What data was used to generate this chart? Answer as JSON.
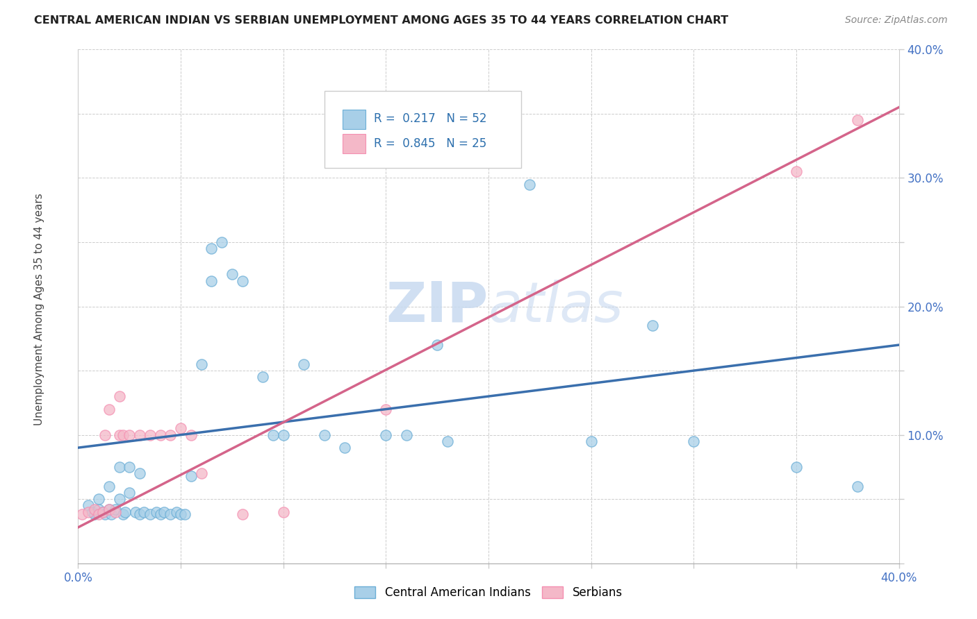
{
  "title": "CENTRAL AMERICAN INDIAN VS SERBIAN UNEMPLOYMENT AMONG AGES 35 TO 44 YEARS CORRELATION CHART",
  "source": "Source: ZipAtlas.com",
  "ylabel": "Unemployment Among Ages 35 to 44 years",
  "xlim": [
    0.0,
    0.4
  ],
  "ylim": [
    0.0,
    0.4
  ],
  "xticks": [
    0.0,
    0.05,
    0.1,
    0.15,
    0.2,
    0.25,
    0.3,
    0.35,
    0.4
  ],
  "yticks": [
    0.0,
    0.05,
    0.1,
    0.15,
    0.2,
    0.25,
    0.3,
    0.35,
    0.4
  ],
  "xticklabels": [
    "0.0%",
    "",
    "",
    "",
    "",
    "",
    "",
    "",
    "40.0%"
  ],
  "yticklabels": [
    "",
    "",
    "10.0%",
    "",
    "20.0%",
    "",
    "30.0%",
    "",
    "40.0%"
  ],
  "blue_color": "#a8cfe8",
  "pink_color": "#f4b8c8",
  "blue_edge_color": "#6baed6",
  "pink_edge_color": "#f48fb1",
  "blue_line_color": "#3a6fad",
  "pink_line_color": "#d4648a",
  "watermark_color": "#dce8f5",
  "blue_scatter_x": [
    0.005,
    0.007,
    0.008,
    0.01,
    0.01,
    0.012,
    0.013,
    0.015,
    0.015,
    0.016,
    0.018,
    0.02,
    0.02,
    0.022,
    0.023,
    0.025,
    0.025,
    0.028,
    0.03,
    0.03,
    0.032,
    0.035,
    0.038,
    0.04,
    0.042,
    0.045,
    0.048,
    0.05,
    0.052,
    0.055,
    0.06,
    0.065,
    0.065,
    0.07,
    0.075,
    0.08,
    0.09,
    0.095,
    0.1,
    0.11,
    0.12,
    0.13,
    0.15,
    0.16,
    0.175,
    0.18,
    0.22,
    0.25,
    0.28,
    0.3,
    0.35,
    0.38
  ],
  "blue_scatter_y": [
    0.045,
    0.04,
    0.038,
    0.042,
    0.05,
    0.04,
    0.038,
    0.042,
    0.06,
    0.038,
    0.042,
    0.05,
    0.075,
    0.038,
    0.04,
    0.055,
    0.075,
    0.04,
    0.038,
    0.07,
    0.04,
    0.038,
    0.04,
    0.038,
    0.04,
    0.038,
    0.04,
    0.038,
    0.038,
    0.068,
    0.155,
    0.245,
    0.22,
    0.25,
    0.225,
    0.22,
    0.145,
    0.1,
    0.1,
    0.155,
    0.1,
    0.09,
    0.1,
    0.1,
    0.17,
    0.095,
    0.295,
    0.095,
    0.185,
    0.095,
    0.075,
    0.06
  ],
  "pink_scatter_x": [
    0.002,
    0.005,
    0.008,
    0.01,
    0.012,
    0.013,
    0.015,
    0.015,
    0.018,
    0.02,
    0.02,
    0.022,
    0.025,
    0.03,
    0.035,
    0.04,
    0.045,
    0.05,
    0.055,
    0.06,
    0.08,
    0.1,
    0.15,
    0.35,
    0.38
  ],
  "pink_scatter_y": [
    0.038,
    0.04,
    0.042,
    0.038,
    0.04,
    0.1,
    0.042,
    0.12,
    0.04,
    0.1,
    0.13,
    0.1,
    0.1,
    0.1,
    0.1,
    0.1,
    0.1,
    0.105,
    0.1,
    0.07,
    0.038,
    0.04,
    0.12,
    0.305,
    0.345
  ],
  "blue_line_x": [
    0.0,
    0.4
  ],
  "blue_line_y": [
    0.09,
    0.17
  ],
  "pink_line_x": [
    0.0,
    0.4
  ],
  "pink_line_y": [
    0.028,
    0.355
  ]
}
